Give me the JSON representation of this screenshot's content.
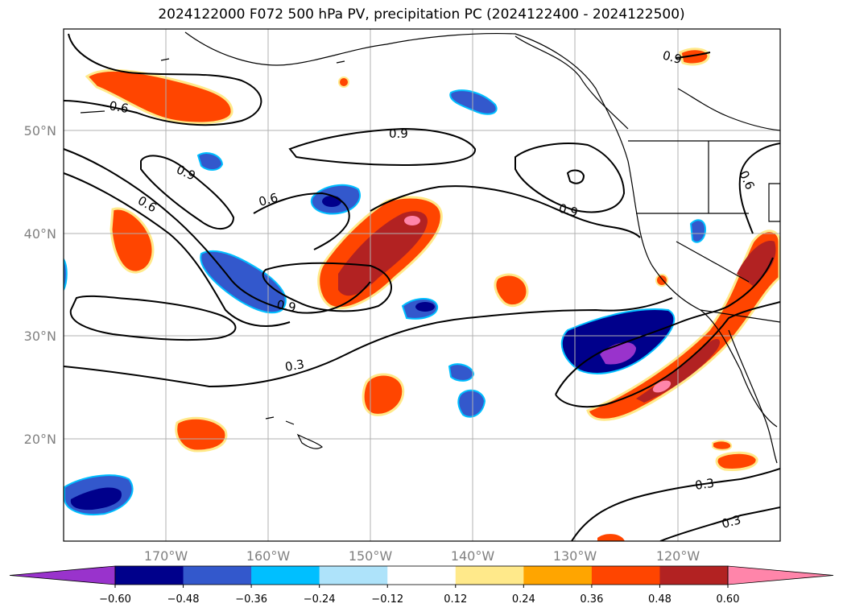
{
  "title": "2024122000 F072 500 hPa PV, precipitation PC (2024122400 - 2024122500)",
  "lat_labels": [
    "50°N",
    "40°N",
    "30°N",
    "20°N"
  ],
  "lon_labels": [
    "170°W",
    "160°W",
    "150°W",
    "140°W",
    "130°W",
    "120°W"
  ],
  "contour_labels": [
    "0.6",
    "0.9",
    "0.9",
    "0.6",
    "0.6",
    "0.9",
    "0.9",
    "0.3",
    "0.3",
    "0.3",
    "0.9",
    "0.6"
  ],
  "colorbar": {
    "tick_labels": [
      "−0.60",
      "−0.48",
      "−0.36",
      "−0.24",
      "−0.12",
      "0.12",
      "0.24",
      "0.36",
      "0.48",
      "0.60"
    ],
    "colors": [
      "#9933cc",
      "#00008b",
      "#3358cc",
      "#00bfff",
      "#aee3fa",
      "#ffffff",
      "#ffe98a",
      "#ffa500",
      "#ff4500",
      "#b22222",
      "#ff85aa",
      "#ff85aa"
    ],
    "extend": "both"
  },
  "map": {
    "lon_range": [
      -180,
      -110
    ],
    "lat_range": [
      10,
      60
    ],
    "grid": true
  }
}
